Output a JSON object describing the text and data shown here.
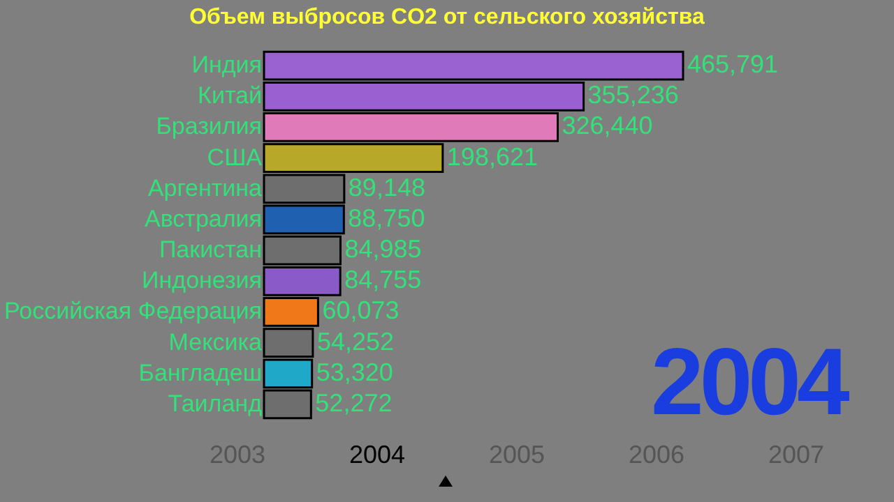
{
  "chart_data": {
    "type": "bar",
    "orientation": "horizontal",
    "title": "Объем выбросов CO2  от сельского хозяйства",
    "categories": [
      "Индия",
      "Китай",
      "Бразилия",
      "США",
      "Аргентина",
      "Австралия",
      "Пакистан",
      "Индонезия",
      "Российская Федерация",
      "Мексика",
      "Бангладеш",
      "Таиланд"
    ],
    "values": [
      465791,
      355236,
      326440,
      198621,
      89148,
      88750,
      84985,
      84755,
      60073,
      54252,
      53320,
      52272
    ],
    "value_labels": [
      "465,791",
      "355,236",
      "326,440",
      "198,621",
      "89,148",
      "88,750",
      "84,985",
      "84,755",
      "60,073",
      "54,252",
      "53,320",
      "52,272"
    ],
    "colors": [
      "#9a62d0",
      "#9a5fd0",
      "#e07ab8",
      "#b8a82a",
      "#6e6e6e",
      "#2060b0",
      "#6e6e6e",
      "#8a5ac8",
      "#f07818",
      "#6e6e6e",
      "#20a8c8",
      "#6e6e6e"
    ],
    "annotations": [
      "2004",
      "2003",
      "2004",
      "2005",
      "2006",
      "2007"
    ]
  }
}
